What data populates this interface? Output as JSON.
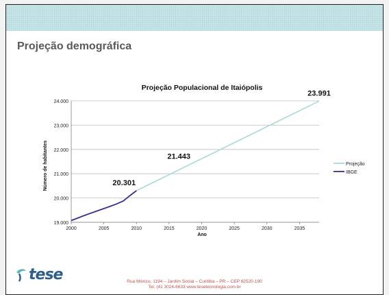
{
  "slide": {
    "title": "Projeção demográfica",
    "footer_logo": "tese",
    "footer_line1": "Rua México, 1194 – Jardim Social – Curitiba – PR – CEP 82520-190",
    "footer_line2": "Tel. (41 3024-6633     www.tesetecnologia.com.br"
  },
  "colors": {
    "header_band": "#c8e6e9",
    "projection": "#a9d9db",
    "ibge": "#3f2b8f",
    "logo": "#2b5f8c",
    "logo_accent": "#5bb5b8",
    "footer_text": "#c0504d"
  },
  "chart_data": {
    "type": "line",
    "title": "Projeção Populacional de Itaiópolis",
    "xlabel": "Ano",
    "ylabel": "Número de habitantes",
    "xlim": [
      2000,
      2038
    ],
    "ylim": [
      19000,
      24000
    ],
    "x_ticks": [
      2000,
      2005,
      2010,
      2015,
      2020,
      2025,
      2030,
      2035
    ],
    "x_tick_labels": [
      "2000",
      "2005",
      "2010",
      "2015",
      "2020",
      "2025",
      "2030",
      "2035"
    ],
    "y_ticks": [
      19000,
      20000,
      21000,
      22000,
      23000,
      24000
    ],
    "y_tick_labels": [
      "19.000",
      "20.000",
      "21.000",
      "22.000",
      "23.000",
      "24.000"
    ],
    "grid": true,
    "legend_position": "right",
    "series": [
      {
        "name": "Projeção",
        "x": [
          2010,
          2038
        ],
        "y": [
          20301,
          23991
        ]
      },
      {
        "name": "IBGE",
        "x": [
          2000,
          2002,
          2004,
          2006,
          2007,
          2008,
          2009,
          2010
        ],
        "y": [
          19070,
          19280,
          19470,
          19660,
          19760,
          19880,
          20100,
          20301
        ]
      }
    ],
    "annotations": [
      {
        "text": "23.991",
        "x": 2038,
        "y": 23991
      },
      {
        "text": "21.443",
        "x": 2016.5,
        "y": 21443
      },
      {
        "text": "20.301",
        "x": 2010,
        "y": 20301
      }
    ]
  }
}
